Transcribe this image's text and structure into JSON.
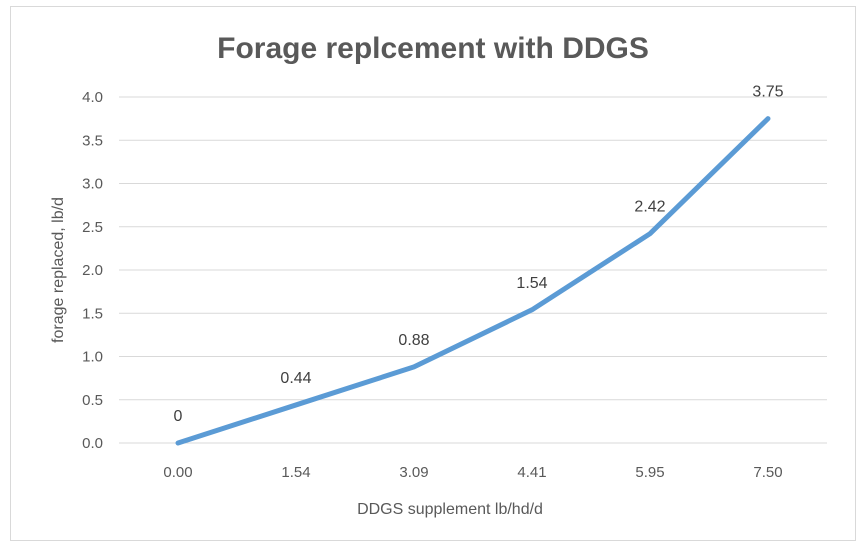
{
  "chart_data": {
    "type": "line",
    "title": "Forage replcement with DDGS",
    "xlabel": "DDGS supplement lb/hd/d",
    "ylabel": "forage replaced, lb/d",
    "categories": [
      "0.00",
      "1.54",
      "3.09",
      "4.41",
      "5.95",
      "7.50"
    ],
    "values": [
      0,
      0.44,
      0.88,
      1.54,
      2.42,
      3.75
    ],
    "data_labels": [
      "0",
      "0.44",
      "0.88",
      "1.54",
      "2.42",
      "3.75"
    ],
    "y_ticks": [
      "0.0",
      "0.5",
      "1.0",
      "1.5",
      "2.0",
      "2.5",
      "3.0",
      "3.5",
      "4.0"
    ],
    "ylim": [
      0,
      4
    ],
    "grid": true,
    "legend": "none",
    "series_color": "#5b9bd5"
  }
}
